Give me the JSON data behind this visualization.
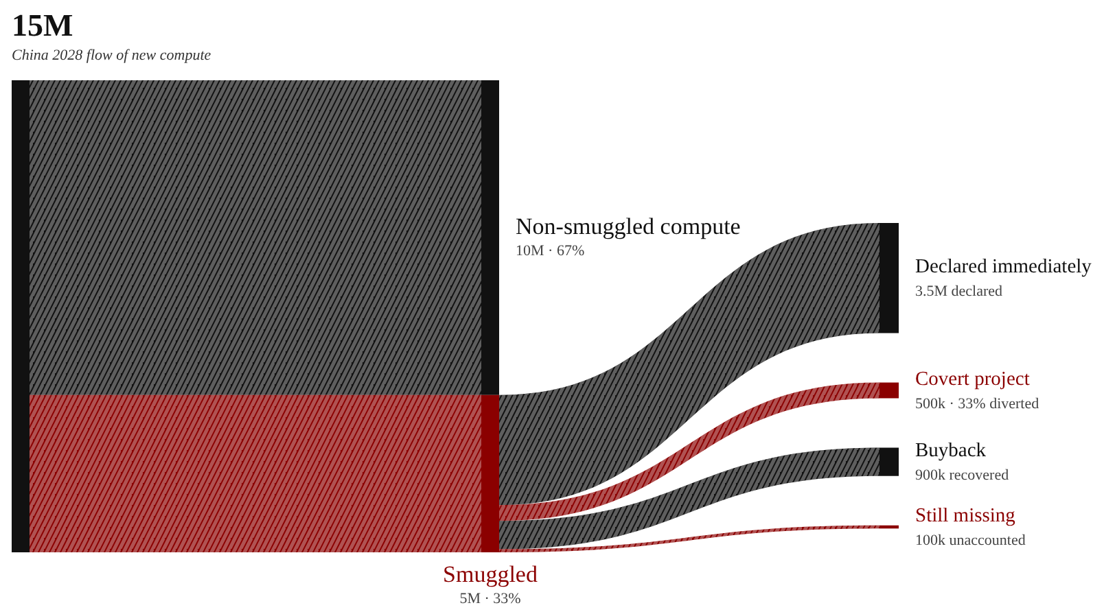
{
  "chart_data": {
    "type": "other",
    "title": "15M",
    "subtitle": "China 2028 flow of new compute",
    "categories": [
      "Non-smuggled compute",
      "Smuggled",
      "Declared immediately",
      "Covert project",
      "Buyback",
      "Still missing"
    ],
    "values": [
      10000000,
      5000000,
      3500000,
      500000,
      900000,
      100000
    ],
    "colors": [
      "#111111",
      "#8b0000",
      "#111111",
      "#8b0000",
      "#111111",
      "#8b0000"
    ],
    "value_labels": [
      "10M · 67%",
      "5M · 33%",
      "3.5M declared",
      "500k · 33% diverted",
      "900k recovered",
      "100k unaccounted"
    ]
  }
}
